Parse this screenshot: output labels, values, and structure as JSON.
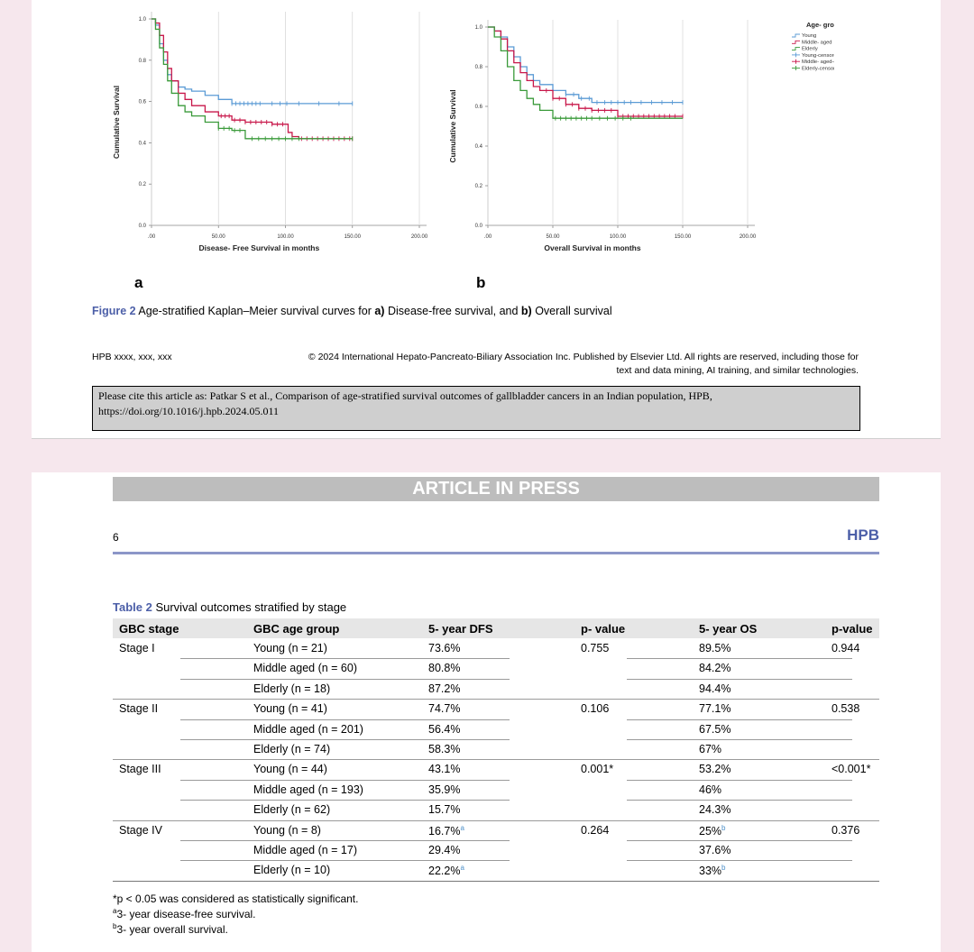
{
  "figure": {
    "panel_a_letter": "a",
    "panel_b_letter": "b",
    "caption_label": "Figure 2",
    "caption_parts": [
      "Age-stratified Kaplan–Meier survival curves for ",
      "a)",
      " Disease-free survival, and ",
      "b)",
      " Overall survival"
    ]
  },
  "chart_data": [
    {
      "type": "line",
      "panel": "a",
      "xlabel": "Disease- Free Survival in months",
      "ylabel": "Cumulative Survival",
      "xlim": [
        0,
        200
      ],
      "ylim": [
        0,
        1
      ],
      "x_ticks": [
        ".00",
        "50.00",
        "100.00",
        "150.00",
        "200.00"
      ],
      "y_ticks": [
        "0.0",
        "0.2",
        "0.4",
        "0.6",
        "0.8",
        "1.0"
      ],
      "grid": "vertical",
      "series": [
        {
          "name": "Young",
          "color": "#5b9bd5",
          "x": [
            0,
            3,
            6,
            9,
            12,
            15,
            20,
            25,
            30,
            40,
            50,
            60,
            80,
            100,
            120,
            150
          ],
          "y": [
            1.0,
            0.97,
            0.88,
            0.8,
            0.73,
            0.7,
            0.67,
            0.66,
            0.65,
            0.63,
            0.61,
            0.59,
            0.59,
            0.59,
            0.59,
            0.59
          ],
          "censored_x": [
            60,
            63,
            66,
            69,
            72,
            75,
            78,
            81,
            90,
            96,
            101,
            110,
            125,
            140,
            150
          ]
        },
        {
          "name": "Middle- aged",
          "color": "#c8174a",
          "x": [
            0,
            3,
            6,
            9,
            12,
            15,
            20,
            25,
            30,
            40,
            50,
            60,
            70,
            80,
            90,
            100,
            102,
            105,
            110,
            120,
            150
          ],
          "y": [
            1.0,
            0.98,
            0.92,
            0.84,
            0.76,
            0.7,
            0.64,
            0.61,
            0.58,
            0.55,
            0.53,
            0.51,
            0.5,
            0.5,
            0.49,
            0.49,
            0.45,
            0.43,
            0.42,
            0.42,
            0.42
          ],
          "censored_x": [
            52,
            55,
            58,
            62,
            66,
            70,
            74,
            78,
            82,
            86,
            90,
            94,
            98,
            112,
            116,
            120,
            124,
            128,
            132,
            136,
            140,
            144,
            148,
            150
          ]
        },
        {
          "name": "Elderly",
          "color": "#3a9a3a",
          "x": [
            0,
            3,
            6,
            9,
            12,
            15,
            20,
            25,
            30,
            40,
            50,
            60,
            70,
            100,
            150
          ],
          "y": [
            1.0,
            0.95,
            0.86,
            0.78,
            0.7,
            0.64,
            0.58,
            0.55,
            0.53,
            0.5,
            0.47,
            0.46,
            0.42,
            0.42,
            0.42
          ],
          "censored_x": [
            50,
            54,
            58,
            62,
            66,
            75,
            80,
            85,
            90,
            95,
            100,
            105,
            110,
            150
          ]
        }
      ],
      "legend": "none"
    },
    {
      "type": "line",
      "panel": "b",
      "xlabel": "Overall Survival in months",
      "ylabel": "Cumulative Survival",
      "xlim": [
        0,
        200
      ],
      "ylim": [
        0,
        1
      ],
      "x_ticks": [
        ".00",
        "50.00",
        "100.00",
        "150.00",
        "200.00"
      ],
      "y_ticks": [
        "0.0",
        "0.2",
        "0.4",
        "0.6",
        "0.8",
        "1.0"
      ],
      "grid": "vertical",
      "legend_title": "Age- group",
      "legend_placement": "top-right",
      "legend": [
        "Young",
        "Middle- aged",
        "Elderly",
        "Young-censored",
        "Middle- aged-censored",
        "Elderly-censored"
      ],
      "series": [
        {
          "name": "Young",
          "color": "#5b9bd5",
          "x": [
            0,
            5,
            10,
            15,
            20,
            25,
            30,
            35,
            40,
            50,
            60,
            70,
            80,
            100,
            150
          ],
          "y": [
            1.0,
            0.98,
            0.95,
            0.9,
            0.85,
            0.8,
            0.76,
            0.73,
            0.71,
            0.68,
            0.66,
            0.64,
            0.62,
            0.62,
            0.62
          ],
          "censored_x": [
            60,
            66,
            72,
            78,
            84,
            90,
            95,
            100,
            105,
            110,
            118,
            126,
            134,
            142,
            150
          ]
        },
        {
          "name": "Middle- aged",
          "color": "#c8174a",
          "x": [
            0,
            5,
            10,
            15,
            20,
            25,
            30,
            35,
            40,
            50,
            60,
            70,
            80,
            90,
            100,
            150
          ],
          "y": [
            1.0,
            0.98,
            0.94,
            0.88,
            0.82,
            0.77,
            0.73,
            0.7,
            0.68,
            0.64,
            0.61,
            0.59,
            0.58,
            0.58,
            0.55,
            0.55
          ],
          "censored_x": [
            45,
            50,
            55,
            60,
            65,
            70,
            75,
            80,
            85,
            90,
            95,
            100,
            104,
            108,
            112,
            116,
            120,
            124,
            128,
            132,
            136,
            140,
            144,
            150
          ]
        },
        {
          "name": "Elderly",
          "color": "#3a9a3a",
          "x": [
            0,
            5,
            10,
            15,
            20,
            25,
            30,
            35,
            40,
            50,
            100,
            150
          ],
          "y": [
            1.0,
            0.95,
            0.88,
            0.8,
            0.73,
            0.68,
            0.64,
            0.61,
            0.58,
            0.54,
            0.54,
            0.54
          ],
          "censored_x": [
            52,
            56,
            60,
            64,
            68,
            72,
            76,
            80,
            86,
            92,
            98,
            104,
            110
          ]
        }
      ]
    }
  ],
  "footer": {
    "journal_ref": "HPB xxxx, xxx, xxx",
    "copyright_line1": "© 2024 International Hepato-Pancreato-Biliary Association Inc. Published by Elsevier Ltd. All rights are reserved, including those for",
    "copyright_line2": "text and data mining, AI training, and similar technologies.",
    "cite": "Please cite this article as: Patkar S et al., Comparison of age-stratified survival outcomes of gallbladder cancers in an Indian population, HPB, https://doi.org/10.1016/j.hpb.2024.05.011"
  },
  "page2": {
    "banner": "ARTICLE IN PRESS",
    "page_number": "6",
    "journal": "HPB",
    "table_caption_label": "Table 2",
    "table_caption_text": " Survival outcomes stratified by stage",
    "headers": [
      "GBC stage",
      "GBC age group",
      "5- year DFS",
      "p- value",
      "5- year OS",
      "p-value"
    ],
    "rows": [
      {
        "stage": "Stage I",
        "group": "Young (n = 21)",
        "dfs": "73.6%",
        "dfs_sup": "",
        "p1": "0.755",
        "os": "89.5%",
        "os_sup": "",
        "p2": "0.944"
      },
      {
        "stage": "",
        "group": "Middle aged (n = 60)",
        "dfs": "80.8%",
        "dfs_sup": "",
        "p1": "",
        "os": "84.2%",
        "os_sup": "",
        "p2": ""
      },
      {
        "stage": "",
        "group": "Elderly (n = 18)",
        "dfs": "87.2%",
        "dfs_sup": "",
        "p1": "",
        "os": "94.4%",
        "os_sup": "",
        "p2": ""
      },
      {
        "stage": "Stage II",
        "group": "Young (n = 41)",
        "dfs": "74.7%",
        "dfs_sup": "",
        "p1": "0.106",
        "os": "77.1%",
        "os_sup": "",
        "p2": "0.538"
      },
      {
        "stage": "",
        "group": "Middle aged (n = 201)",
        "dfs": "56.4%",
        "dfs_sup": "",
        "p1": "",
        "os": "67.5%",
        "os_sup": "",
        "p2": ""
      },
      {
        "stage": "",
        "group": "Elderly (n = 74)",
        "dfs": "58.3%",
        "dfs_sup": "",
        "p1": "",
        "os": "67%",
        "os_sup": "",
        "p2": ""
      },
      {
        "stage": "Stage III",
        "group": "Young (n = 44)",
        "dfs": "43.1%",
        "dfs_sup": "",
        "p1": "0.001*",
        "os": "53.2%",
        "os_sup": "",
        "p2": "<0.001*"
      },
      {
        "stage": "",
        "group": "Middle aged (n = 193)",
        "dfs": "35.9%",
        "dfs_sup": "",
        "p1": "",
        "os": "46%",
        "os_sup": "",
        "p2": ""
      },
      {
        "stage": "",
        "group": "Elderly (n = 62)",
        "dfs": "15.7%",
        "dfs_sup": "",
        "p1": "",
        "os": "24.3%",
        "os_sup": "",
        "p2": ""
      },
      {
        "stage": "Stage IV",
        "group": "Young (n = 8)",
        "dfs": "16.7%",
        "dfs_sup": "a",
        "p1": "0.264",
        "os": "25%",
        "os_sup": "b",
        "p2": "0.376"
      },
      {
        "stage": "",
        "group": "Middle aged (n = 17)",
        "dfs": "29.4%",
        "dfs_sup": "",
        "p1": "",
        "os": "37.6%",
        "os_sup": "",
        "p2": ""
      },
      {
        "stage": "",
        "group": "Elderly (n = 10)",
        "dfs": "22.2%",
        "dfs_sup": "a",
        "p1": "",
        "os": "33%",
        "os_sup": "b",
        "p2": ""
      }
    ],
    "footnote1": "*p < 0.05 was considered as statistically significant.",
    "footnote2_mark": "a",
    "footnote2": "3- year disease-free survival.",
    "footnote3_mark": "b",
    "footnote3": "3- year overall survival."
  }
}
